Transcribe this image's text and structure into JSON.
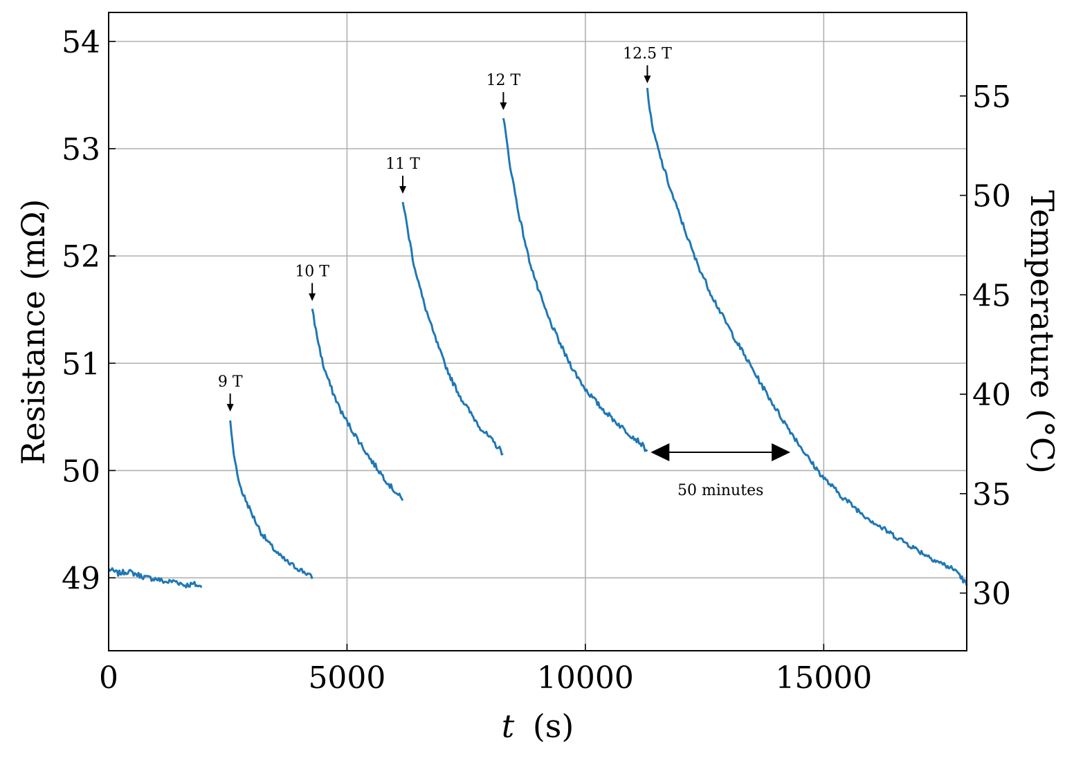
{
  "chart_data": {
    "type": "line",
    "xlabel_italic": "t",
    "xlabel_unit": "(s)",
    "ylabel": "Resistance (mΩ)",
    "y2label": "Temperature (°C)",
    "xlim": [
      0,
      18000
    ],
    "ylim": [
      48.32,
      54.27
    ],
    "y2lim": [
      27.1,
      59.2
    ],
    "xticks": [
      0,
      5000,
      10000,
      15000
    ],
    "xtick_labels": [
      "0",
      "5000",
      "10000",
      "15000"
    ],
    "yticks": [
      49,
      50,
      51,
      52,
      53,
      54
    ],
    "ytick_labels": [
      "49",
      "50",
      "51",
      "52",
      "53",
      "54"
    ],
    "y2ticks": [
      30,
      35,
      40,
      45,
      50,
      55
    ],
    "y2tick_labels": [
      "30",
      "35",
      "40",
      "45",
      "50",
      "55"
    ],
    "grid": true,
    "color": "#1f77b4",
    "series": [
      {
        "x": [
          0,
          200,
          400,
          600,
          800,
          1000,
          1200,
          1400,
          1600,
          1800,
          1950
        ],
        "y": [
          49.08,
          49.04,
          49.06,
          49.03,
          49.0,
          48.99,
          48.96,
          48.97,
          48.93,
          48.94,
          48.91
        ]
      },
      {
        "x": [
          2550,
          2600,
          2700,
          2800,
          3000,
          3200,
          3400,
          3600,
          3800,
          4000,
          4200,
          4270
        ],
        "y": [
          50.48,
          50.25,
          49.95,
          49.8,
          49.6,
          49.42,
          49.3,
          49.2,
          49.13,
          49.08,
          49.03,
          48.99
        ]
      },
      {
        "x": [
          4270,
          4350,
          4500,
          4700,
          4900,
          5100,
          5300,
          5500,
          5700,
          5900,
          6100,
          6170
        ],
        "y": [
          51.52,
          51.3,
          50.98,
          50.73,
          50.53,
          50.38,
          50.24,
          50.1,
          49.98,
          49.86,
          49.76,
          49.72
        ]
      },
      {
        "x": [
          6170,
          6250,
          6400,
          6600,
          6800,
          7000,
          7200,
          7400,
          7600,
          7800,
          8000,
          8200,
          8270
        ],
        "y": [
          52.52,
          52.3,
          51.93,
          51.58,
          51.3,
          51.05,
          50.84,
          50.67,
          50.53,
          50.4,
          50.3,
          50.2,
          50.16
        ]
      },
      {
        "x": [
          8280,
          8400,
          8600,
          8800,
          9000,
          9200,
          9400,
          9600,
          9800,
          10000,
          10300,
          10600,
          10900,
          11150,
          11300
        ],
        "y": [
          53.3,
          52.9,
          52.4,
          52.0,
          51.7,
          51.45,
          51.25,
          51.06,
          50.9,
          50.76,
          50.6,
          50.47,
          50.35,
          50.26,
          50.18
        ]
      },
      {
        "x": [
          11300,
          11400,
          11600,
          11800,
          12000,
          12300,
          12600,
          12900,
          13200,
          13500,
          13800,
          14100,
          14400,
          14700,
          15000,
          15400,
          15800,
          16200,
          16600,
          17000,
          17400,
          17800,
          18000
        ],
        "y": [
          53.55,
          53.2,
          52.88,
          52.6,
          52.35,
          51.98,
          51.68,
          51.42,
          51.18,
          50.95,
          50.72,
          50.5,
          50.3,
          50.1,
          49.93,
          49.75,
          49.6,
          49.47,
          49.36,
          49.25,
          49.15,
          49.06,
          48.93
        ]
      }
    ],
    "field_labels": [
      {
        "text": "9 T",
        "x": 2550,
        "y": 50.55
      },
      {
        "text": "10 T",
        "x": 4270,
        "y": 51.58
      },
      {
        "text": "11 T",
        "x": 6170,
        "y": 52.58
      },
      {
        "text": "12 T",
        "x": 8280,
        "y": 53.36
      },
      {
        "text": "12.5 T",
        "x": 11300,
        "y": 53.61
      }
    ],
    "interval_annotation": {
      "text": "50 minutes",
      "x_start": 11370,
      "x_end": 14300,
      "y": 50.17
    }
  }
}
